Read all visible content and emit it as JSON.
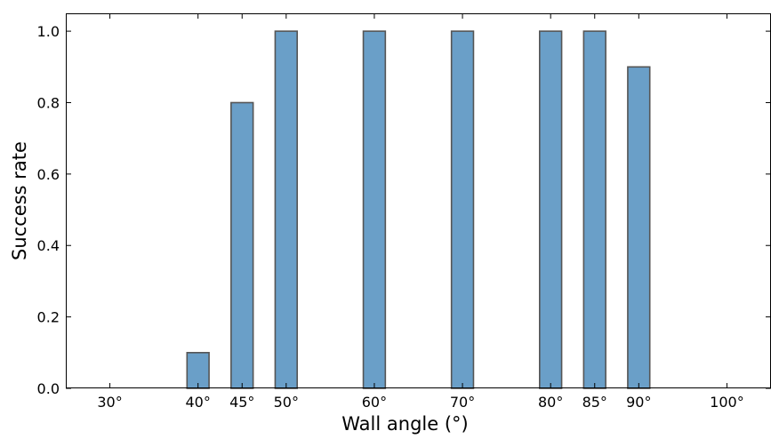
{
  "chart_data": {
    "type": "bar",
    "title": "",
    "xlabel": "Wall angle (°)",
    "ylabel": "Success rate",
    "x_ticks": [
      {
        "value": 30,
        "label": "30°"
      },
      {
        "value": 40,
        "label": "40°"
      },
      {
        "value": 45,
        "label": "45°"
      },
      {
        "value": 50,
        "label": "50°"
      },
      {
        "value": 60,
        "label": "60°"
      },
      {
        "value": 70,
        "label": "70°"
      },
      {
        "value": 80,
        "label": "80°"
      },
      {
        "value": 85,
        "label": "85°"
      },
      {
        "value": 90,
        "label": "90°"
      },
      {
        "value": 100,
        "label": "100°"
      }
    ],
    "y_ticks": [
      {
        "value": 0.0,
        "label": "0.0"
      },
      {
        "value": 0.2,
        "label": "0.2"
      },
      {
        "value": 0.4,
        "label": "0.4"
      },
      {
        "value": 0.6,
        "label": "0.6"
      },
      {
        "value": 0.8,
        "label": "0.8"
      },
      {
        "value": 1.0,
        "label": "1.0"
      }
    ],
    "x": [
      40,
      45,
      50,
      60,
      70,
      80,
      85,
      90
    ],
    "values": [
      0.1,
      0.8,
      1.0,
      1.0,
      1.0,
      1.0,
      1.0,
      0.9
    ],
    "bar_width": 2.5,
    "xlim": [
      25,
      105
    ],
    "ylim": [
      0,
      1.05
    ],
    "grid": false,
    "colors": {
      "bar_fill": "#6a9fc8",
      "bar_edge": "#555555",
      "axis": "#000000"
    }
  }
}
